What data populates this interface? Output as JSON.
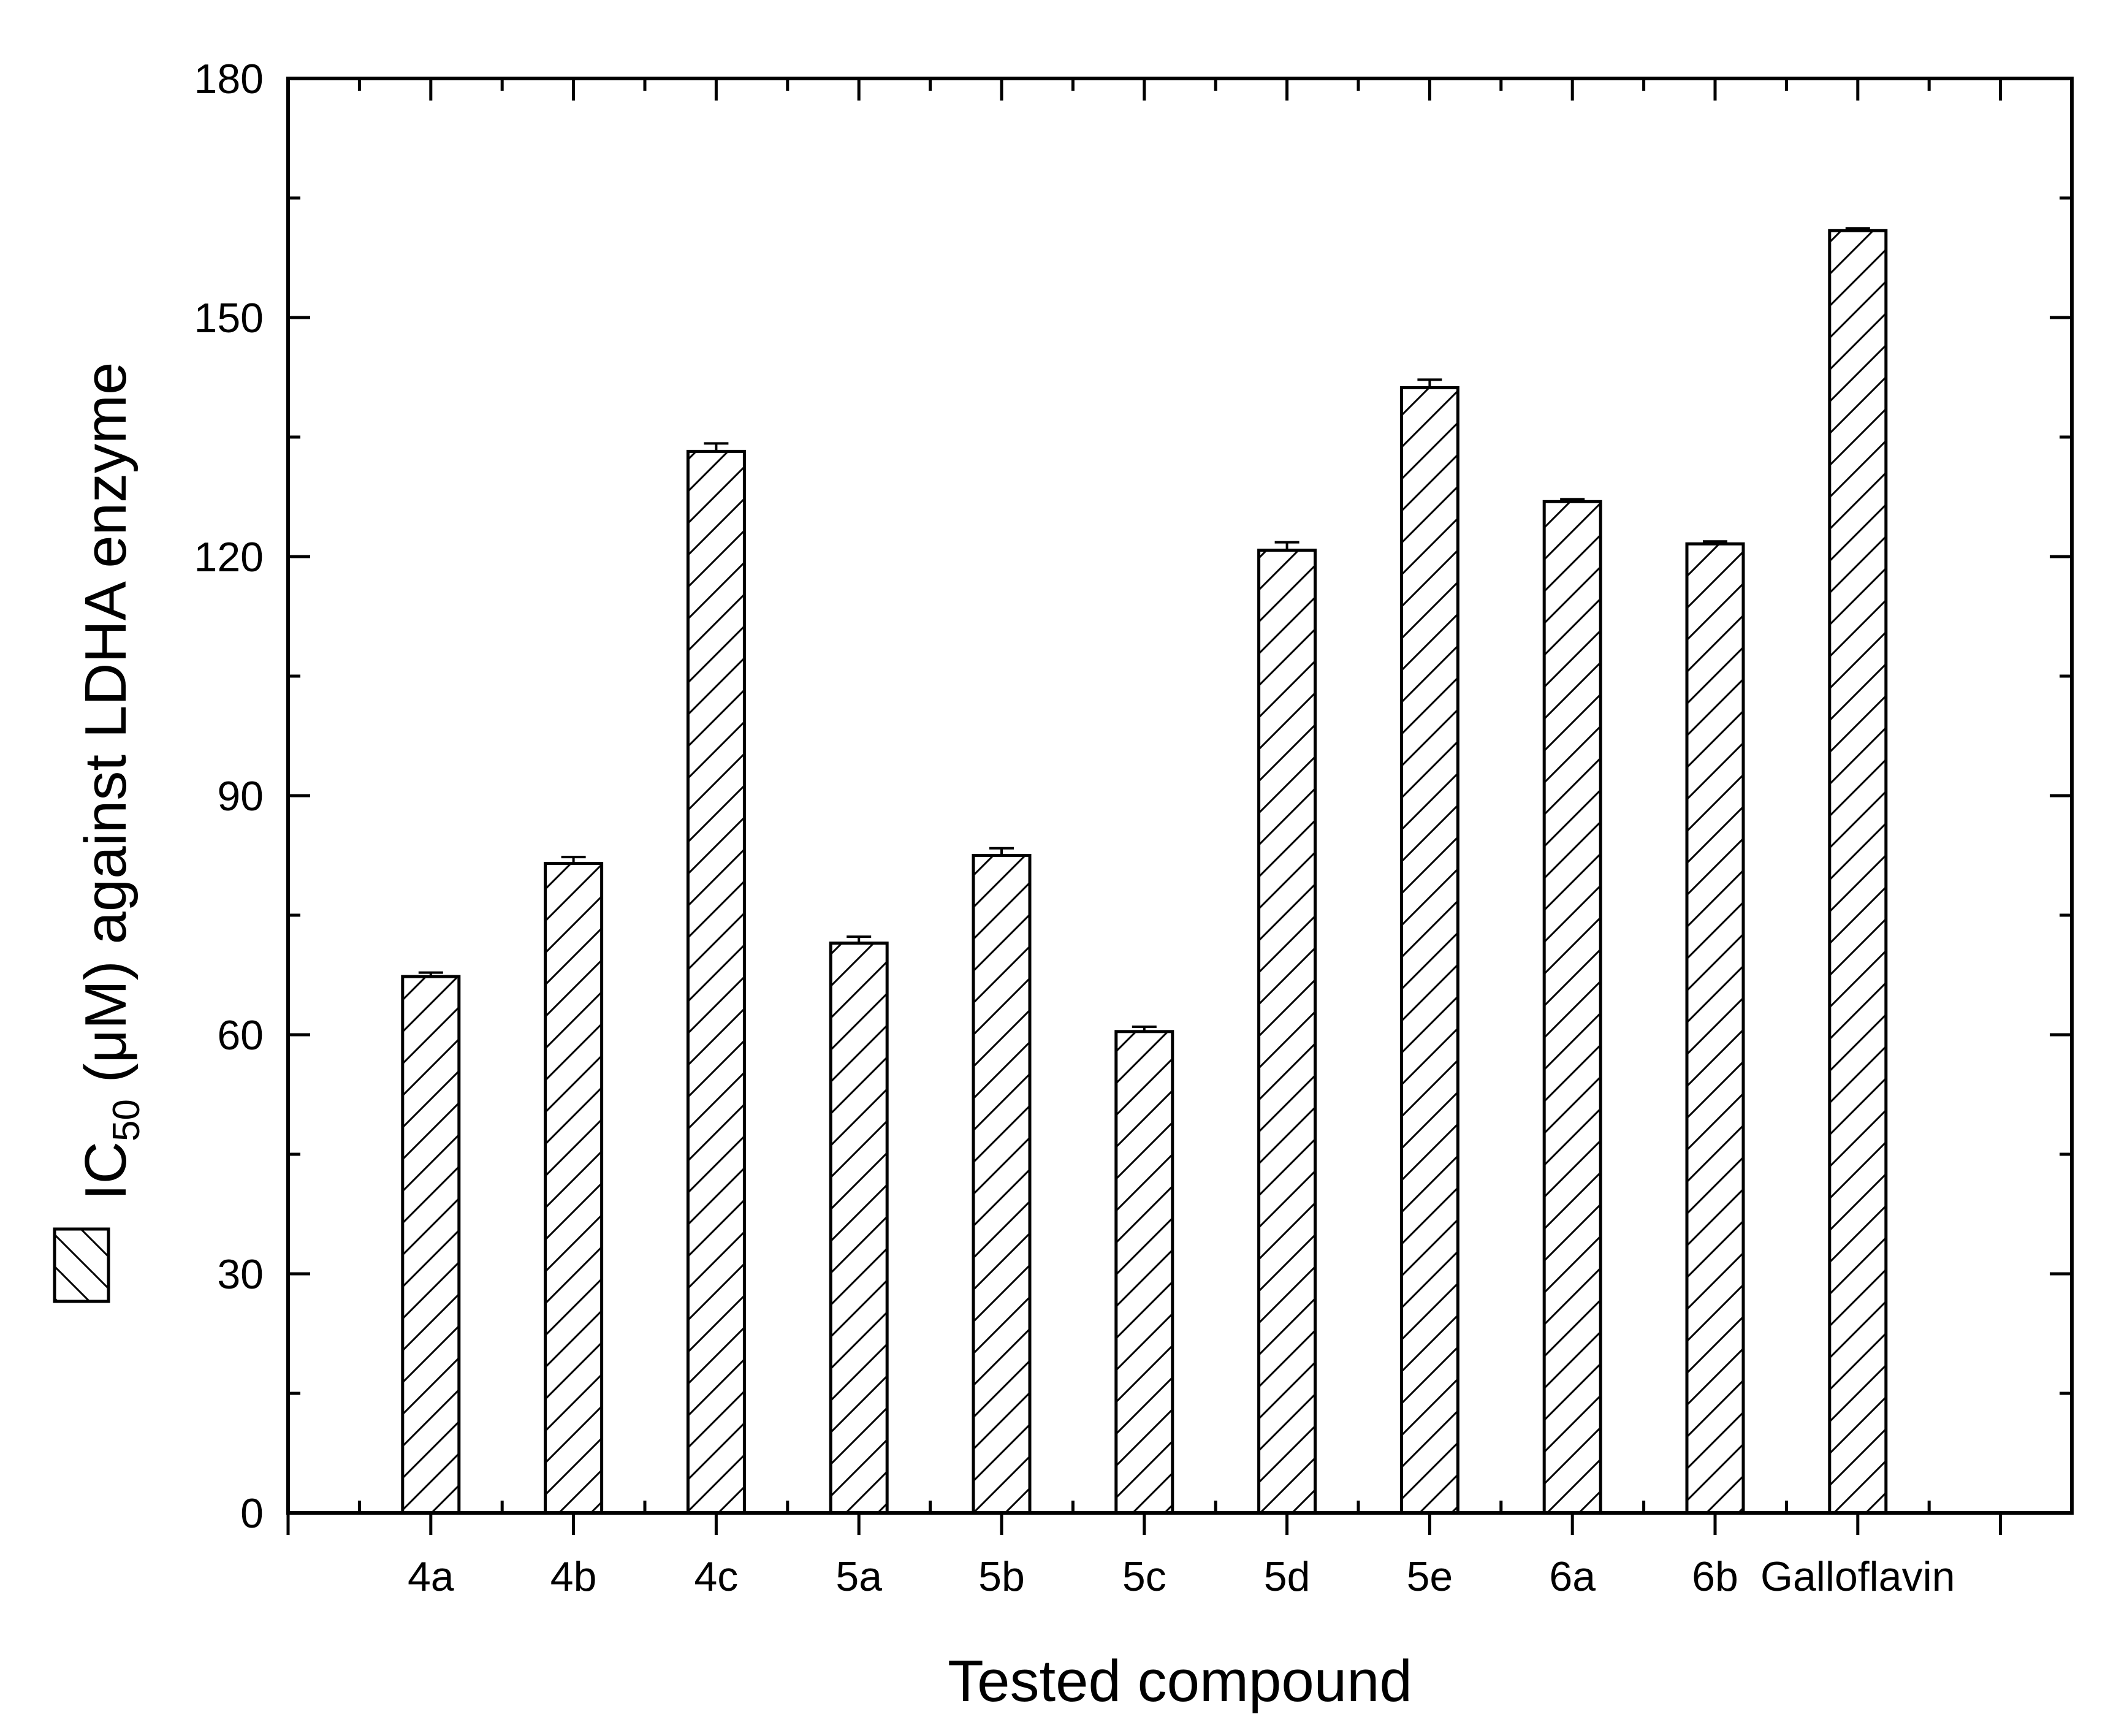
{
  "chart_data": {
    "type": "bar",
    "categories": [
      "4a",
      "4b",
      "4c",
      "5a",
      "5b",
      "5c",
      "5d",
      "5e",
      "6a",
      "6b",
      "Galloflavin"
    ],
    "values": [
      67.3,
      81.5,
      133.2,
      71.5,
      82.5,
      60.4,
      120.8,
      141.2,
      126.9,
      121.6,
      160.9
    ],
    "errors": [
      0.5,
      0.8,
      1.0,
      0.8,
      0.9,
      0.6,
      1.0,
      1.0,
      0.3,
      0.3,
      0.3
    ],
    "xlabel": "Tested compound",
    "ylabel": {
      "main": "IC",
      "subscript": "50",
      "rest": " (μM) against LDHA enzyme"
    },
    "yticks": [
      "0",
      "30",
      "60",
      "90",
      "120",
      "150",
      "180"
    ],
    "ylim": [
      0,
      180
    ],
    "pattern": "diagonal-hatch",
    "bar_fill": "#ffffff",
    "bar_stroke": "#000000",
    "legend": "left, beside y-axis title (hatched box only)"
  }
}
